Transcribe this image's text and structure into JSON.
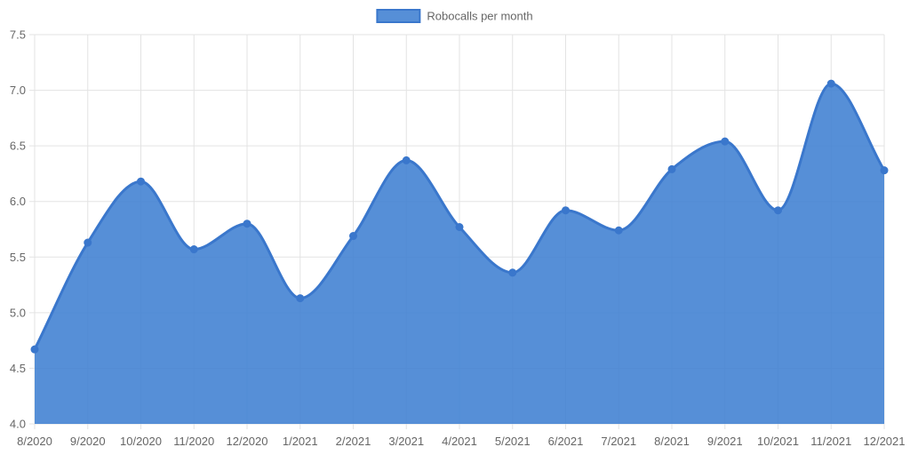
{
  "chart_data": {
    "type": "area",
    "title": "",
    "xlabel": "",
    "ylabel": "",
    "categories": [
      "8/2020",
      "9/2020",
      "10/2020",
      "11/2020",
      "12/2020",
      "1/2021",
      "2/2021",
      "3/2021",
      "4/2021",
      "5/2021",
      "6/2021",
      "7/2021",
      "8/2021",
      "9/2021",
      "10/2021",
      "11/2021",
      "12/2021"
    ],
    "series": [
      {
        "name": "Robocalls per month",
        "values": [
          4.67,
          5.63,
          6.18,
          5.57,
          5.8,
          5.13,
          5.69,
          6.37,
          5.77,
          5.36,
          5.92,
          5.74,
          6.29,
          6.54,
          5.92,
          7.06,
          6.28
        ]
      }
    ],
    "ylim": [
      4.0,
      7.5
    ],
    "y_ticks": [
      "4.0",
      "4.5",
      "5.0",
      "5.5",
      "6.0",
      "6.5",
      "7.0",
      "7.5"
    ],
    "grid": true,
    "legend_position": "top-center",
    "colors": {
      "fill": "#3f7fd2",
      "line": "#3a77cc",
      "point": "#3a77cc",
      "grid": "#e3e3e3",
      "text": "#666666"
    }
  }
}
